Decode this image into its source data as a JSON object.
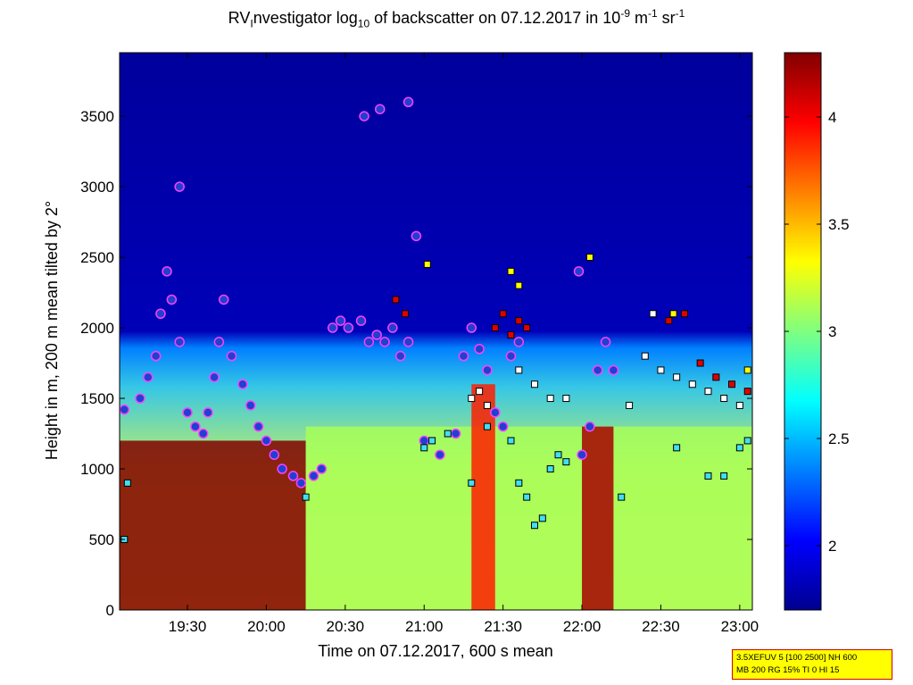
{
  "title": {
    "prefix": "RV",
    "sub_i": "I",
    "middle": "nvestigator log",
    "sub_10": "10",
    "after_log": " of backscatter on 07.12.2017 in 10",
    "exp1": "-9",
    "unit_m": " m",
    "exp2": "-1",
    "unit_sr": " sr",
    "exp3": "-1"
  },
  "info_box": {
    "line1": "3.5XEFUV 5 [100 2500] NH 600",
    "line2": "MB 200 RG 15% TI 0 HI 15"
  },
  "chart_data": {
    "type": "heatmap",
    "xlabel": "Time on 07.12.2017, 600 s mean",
    "ylabel": "Height in m, 200 m mean tilted by 2°",
    "x_ticks": [
      "19:30",
      "20:00",
      "20:30",
      "21:00",
      "21:30",
      "22:00",
      "22:30",
      "23:00"
    ],
    "x_range_hours": [
      19.07,
      23.08
    ],
    "y_ticks": [
      0,
      500,
      1000,
      1500,
      2000,
      2500,
      3000,
      3500
    ],
    "ylim": [
      0,
      3950
    ],
    "colorbar": {
      "colormap": "jet",
      "range": [
        1.7,
        4.3
      ],
      "ticks": [
        2,
        2.5,
        3,
        3.5,
        4
      ],
      "tick_labels": [
        "2",
        "2.5",
        "3",
        "3.5",
        "4"
      ]
    },
    "background_value_low": 1.8,
    "layers": [
      {
        "name": "near-surface dense layer",
        "times": [
          19.07,
          20.25
        ],
        "top_m": 1200,
        "value": 4.3
      },
      {
        "name": "aerosol layer",
        "times": [
          20.25,
          23.08
        ],
        "top_m": 1300,
        "value": 3.1
      },
      {
        "name": "plume 21:25",
        "times": [
          21.3,
          21.45
        ],
        "top_m": 1600,
        "value": 3.9
      },
      {
        "name": "plume 22:05",
        "times": [
          22.0,
          22.2
        ],
        "top_m": 1300,
        "value": 4.2
      }
    ],
    "series": [
      {
        "name": "",
        "marker": "circle-blue",
        "points": [
          [
            19.1,
            1420
          ],
          [
            19.2,
            1500
          ],
          [
            19.25,
            1650
          ],
          [
            19.3,
            1800
          ],
          [
            19.33,
            2100
          ],
          [
            19.37,
            2400
          ],
          [
            19.4,
            2200
          ],
          [
            19.45,
            1900
          ],
          [
            19.5,
            1400
          ],
          [
            19.55,
            1300
          ],
          [
            19.6,
            1250
          ],
          [
            19.63,
            1400
          ],
          [
            19.67,
            1650
          ],
          [
            19.7,
            1900
          ],
          [
            19.73,
            2200
          ],
          [
            19.78,
            1800
          ],
          [
            19.85,
            1600
          ],
          [
            19.9,
            1450
          ],
          [
            19.95,
            1300
          ],
          [
            20.0,
            1200
          ],
          [
            20.05,
            1100
          ],
          [
            20.1,
            1000
          ],
          [
            20.17,
            950
          ],
          [
            20.22,
            900
          ],
          [
            20.3,
            950
          ],
          [
            20.35,
            1000
          ],
          [
            20.42,
            2000
          ],
          [
            20.47,
            2050
          ],
          [
            20.52,
            2000
          ],
          [
            20.6,
            2050
          ],
          [
            20.65,
            1900
          ],
          [
            20.7,
            1950
          ],
          [
            20.75,
            1900
          ],
          [
            20.8,
            2000
          ],
          [
            20.85,
            1800
          ],
          [
            20.9,
            1900
          ],
          [
            21.0,
            1200
          ],
          [
            21.1,
            1100
          ],
          [
            21.2,
            1250
          ],
          [
            21.25,
            1800
          ],
          [
            21.3,
            2000
          ],
          [
            21.35,
            1850
          ],
          [
            21.4,
            1700
          ],
          [
            21.45,
            1400
          ],
          [
            21.5,
            1300
          ],
          [
            21.55,
            1800
          ],
          [
            21.6,
            1900
          ],
          [
            22.0,
            1100
          ],
          [
            22.05,
            1300
          ],
          [
            22.1,
            1700
          ],
          [
            22.15,
            1900
          ],
          [
            22.2,
            1700
          ],
          [
            19.45,
            3000
          ],
          [
            20.62,
            3500
          ],
          [
            20.72,
            3550
          ],
          [
            20.9,
            3600
          ],
          [
            20.95,
            2650
          ],
          [
            21.98,
            2400
          ]
        ]
      },
      {
        "name": "",
        "marker": "square-cyan",
        "points": [
          [
            19.1,
            500
          ],
          [
            19.12,
            900
          ],
          [
            20.25,
            800
          ],
          [
            21.0,
            1150
          ],
          [
            21.05,
            1200
          ],
          [
            21.15,
            1250
          ],
          [
            21.3,
            900
          ],
          [
            21.4,
            1300
          ],
          [
            21.55,
            1200
          ],
          [
            21.6,
            900
          ],
          [
            21.65,
            800
          ],
          [
            21.7,
            600
          ],
          [
            21.75,
            650
          ],
          [
            21.8,
            1000
          ],
          [
            21.85,
            1100
          ],
          [
            21.9,
            1050
          ],
          [
            22.25,
            800
          ],
          [
            22.6,
            1150
          ],
          [
            22.8,
            950
          ],
          [
            22.9,
            950
          ],
          [
            23.0,
            1150
          ],
          [
            23.05,
            1200
          ]
        ]
      },
      {
        "name": "",
        "marker": "square-white",
        "points": [
          [
            21.3,
            1500
          ],
          [
            21.35,
            1550
          ],
          [
            21.4,
            1450
          ],
          [
            21.6,
            1700
          ],
          [
            21.7,
            1600
          ],
          [
            21.8,
            1500
          ],
          [
            21.9,
            1500
          ],
          [
            22.4,
            1800
          ],
          [
            22.5,
            1700
          ],
          [
            22.6,
            1650
          ],
          [
            22.7,
            1600
          ],
          [
            22.8,
            1550
          ],
          [
            22.9,
            1500
          ],
          [
            23.0,
            1450
          ],
          [
            22.3,
            1450
          ],
          [
            22.45,
            2100
          ]
        ]
      },
      {
        "name": "",
        "marker": "square-red",
        "points": [
          [
            20.82,
            2200
          ],
          [
            20.88,
            2100
          ],
          [
            21.45,
            2000
          ],
          [
            21.5,
            2100
          ],
          [
            21.55,
            1950
          ],
          [
            21.6,
            2050
          ],
          [
            21.65,
            2000
          ],
          [
            22.55,
            2050
          ],
          [
            22.65,
            2100
          ],
          [
            22.75,
            1750
          ],
          [
            22.85,
            1650
          ],
          [
            22.95,
            1600
          ],
          [
            23.05,
            1550
          ]
        ]
      },
      {
        "name": "",
        "marker": "square-yellow",
        "points": [
          [
            21.02,
            2450
          ],
          [
            21.55,
            2400
          ],
          [
            21.6,
            2300
          ],
          [
            22.05,
            2500
          ],
          [
            22.58,
            2100
          ],
          [
            23.05,
            1700
          ]
        ]
      }
    ]
  }
}
